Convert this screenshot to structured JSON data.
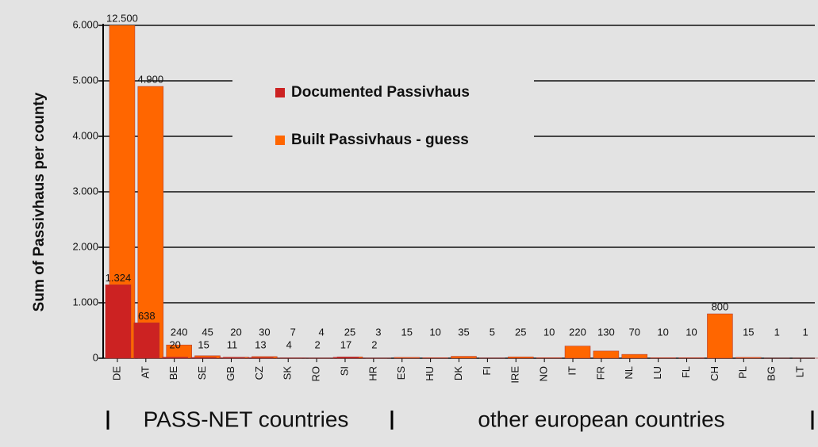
{
  "chart_data": {
    "type": "bar",
    "y_label": "Sum of Passivhaus per county",
    "categories": [
      "DE",
      "AT",
      "BE",
      "SE",
      "GB",
      "CZ",
      "SK",
      "RO",
      "SI",
      "HR",
      "ES",
      "HU",
      "DK",
      "FI",
      "IRE",
      "NO",
      "IT",
      "FR",
      "NL",
      "LU",
      "FL",
      "CH",
      "PL",
      "BG",
      "LT"
    ],
    "series": [
      {
        "name": "Built Passivhaus - guess",
        "color": "#ff6600",
        "values": [
          12500,
          4900,
          240,
          45,
          20,
          30,
          7,
          4,
          25,
          3,
          15,
          10,
          35,
          5,
          25,
          10,
          220,
          130,
          70,
          10,
          10,
          800,
          15,
          1,
          1
        ],
        "value_labels": [
          "12.500",
          "4.900",
          "240",
          "45",
          "20",
          "30",
          "7",
          "4",
          "25",
          "3",
          "15",
          "10",
          "35",
          "5",
          "25",
          "10",
          "220",
          "130",
          "70",
          "10",
          "10",
          "800",
          "15",
          "1",
          "1"
        ]
      },
      {
        "name": "Documented Passivhaus",
        "color": "#cc2222",
        "values": [
          1324,
          638,
          20,
          15,
          11,
          13,
          4,
          2,
          17,
          2,
          null,
          null,
          null,
          null,
          null,
          null,
          null,
          null,
          null,
          null,
          null,
          null,
          null,
          null,
          null
        ],
        "value_labels": [
          "1.324",
          "638",
          "20",
          "15",
          "11",
          "13",
          "4",
          "2",
          "17",
          "2",
          null,
          null,
          null,
          null,
          null,
          null,
          null,
          null,
          null,
          null,
          null,
          null,
          null,
          null,
          null
        ]
      }
    ],
    "ylim": [
      0,
      6000
    ],
    "yticks": [
      0,
      {
        "value": 1000,
        "label": "1.000"
      },
      {
        "value": 2000,
        "label": "2.000"
      },
      {
        "value": 3000,
        "label": "3.000"
      },
      {
        "value": 4000,
        "label": "4.000"
      },
      {
        "value": 5000,
        "label": "5.000"
      },
      {
        "value": 6000,
        "label": "6.000"
      }
    ],
    "grid": true,
    "annotations": [
      "PASS-NET countries",
      "other european countries"
    ]
  }
}
